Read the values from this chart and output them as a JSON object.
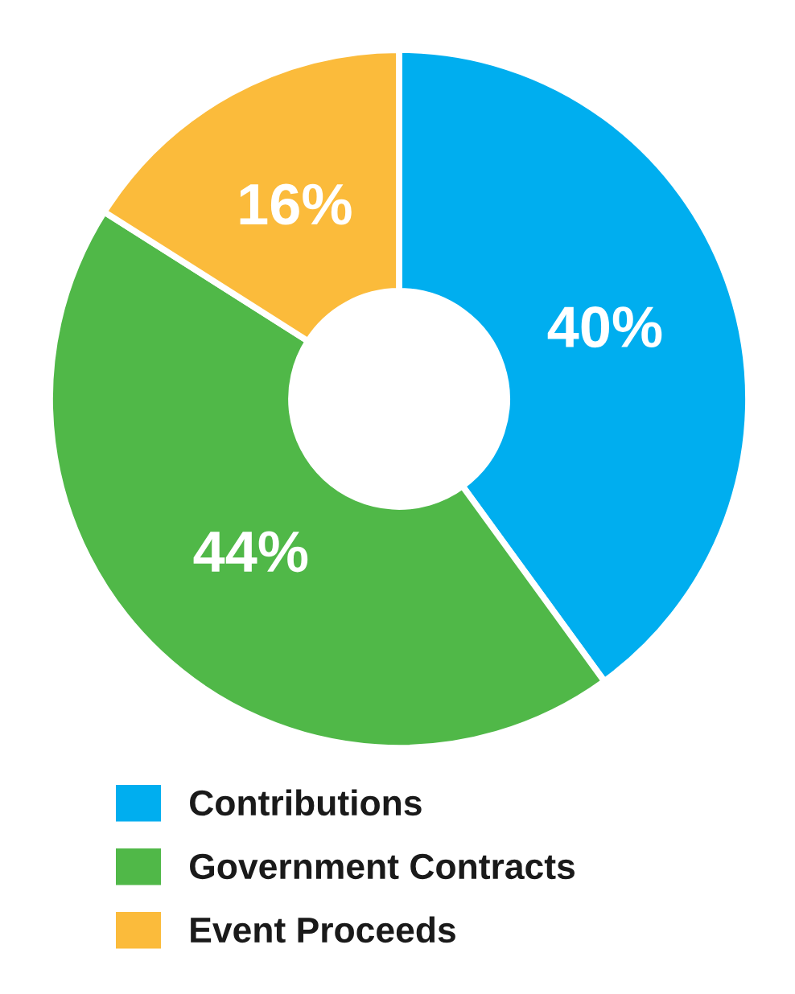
{
  "chart_data": {
    "type": "donut",
    "categories": [
      "Contributions",
      "Government Contracts",
      "Event Proceeds"
    ],
    "values": [
      40,
      44,
      16
    ],
    "colors": [
      "#00aeef",
      "#50b848",
      "#fbbb3b"
    ],
    "value_labels": [
      "40%",
      "44%",
      "16%"
    ],
    "legend": "bottom"
  }
}
